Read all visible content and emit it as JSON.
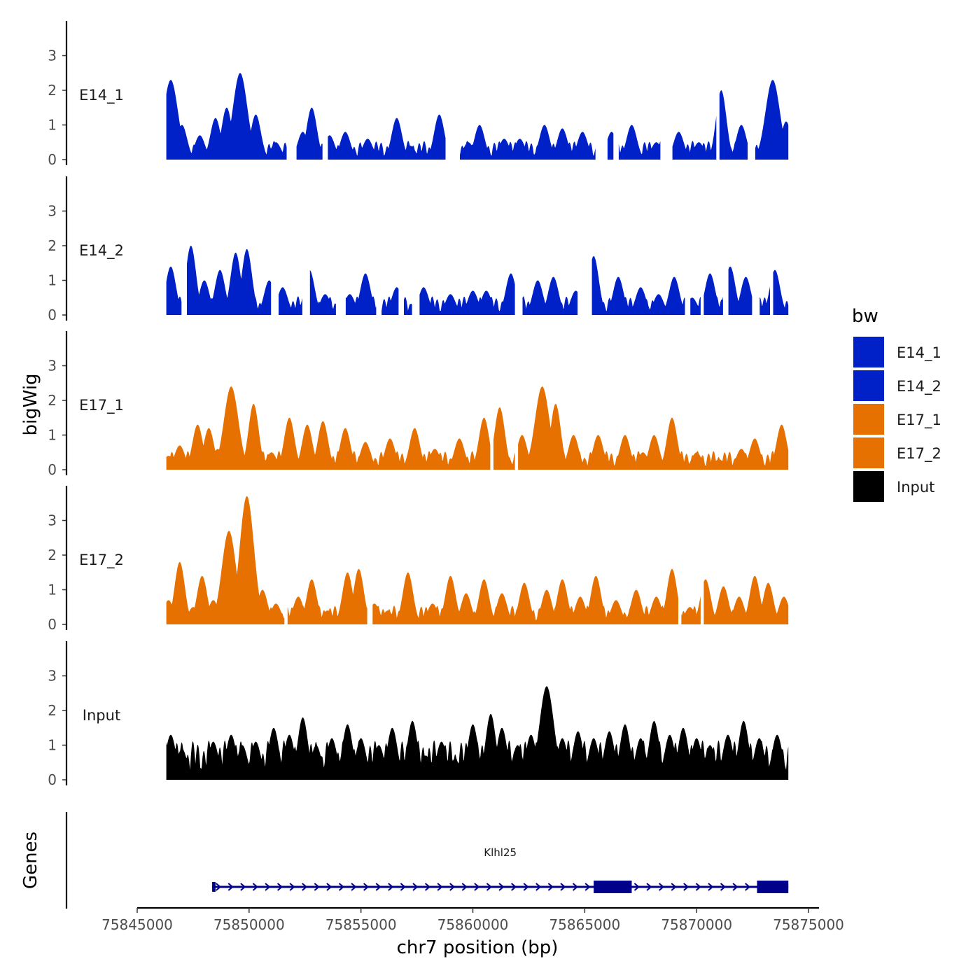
{
  "chart_data": {
    "type": "area",
    "xlabel": "chr7 position (bp)",
    "ylabel": "bigWig",
    "genes_label": "Genes",
    "xlim": [
      75845000,
      75875500
    ],
    "x_ticks": [
      75845000,
      75850000,
      75855000,
      75860000,
      75865000,
      75870000,
      75875000
    ],
    "x_tick_labels": [
      "75845000",
      "75850000",
      "75855000",
      "75860000",
      "75865000",
      "75870000",
      "75875000"
    ],
    "ylim": [
      0,
      4
    ],
    "y_ticks": [
      0,
      1,
      2,
      3
    ],
    "y_tick_labels": [
      "0",
      "1",
      "2",
      "3"
    ],
    "legend": {
      "title": "bw",
      "entries": [
        {
          "label": "E14_1",
          "color": "#0020c8"
        },
        {
          "label": "E14_2",
          "color": "#0020c8"
        },
        {
          "label": "E17_1",
          "color": "#e67100"
        },
        {
          "label": "E17_2",
          "color": "#e67100"
        },
        {
          "label": "Input",
          "color": "#000000"
        }
      ]
    },
    "series": [
      {
        "name": "E14_1",
        "color": "#0020c8",
        "peaks": [
          [
            75846500,
            2.3
          ],
          [
            75847000,
            1.0
          ],
          [
            75847800,
            0.7
          ],
          [
            75848500,
            1.2
          ],
          [
            75849000,
            1.5
          ],
          [
            75849600,
            2.5
          ],
          [
            75850300,
            1.3
          ],
          [
            75851200,
            0.5
          ],
          [
            75852400,
            0.8
          ],
          [
            75852800,
            1.5
          ],
          [
            75853600,
            0.7
          ],
          [
            75854300,
            0.8
          ],
          [
            75855300,
            0.6
          ],
          [
            75856600,
            1.2
          ],
          [
            75857200,
            0.4
          ],
          [
            75858500,
            1.3
          ],
          [
            75859800,
            0.5
          ],
          [
            75860300,
            1.0
          ],
          [
            75861400,
            0.6
          ],
          [
            75862100,
            0.6
          ],
          [
            75863200,
            1.0
          ],
          [
            75864000,
            0.9
          ],
          [
            75864900,
            0.8
          ],
          [
            75866200,
            0.8
          ],
          [
            75867100,
            1.0
          ],
          [
            75868200,
            0.5
          ],
          [
            75869200,
            0.8
          ],
          [
            75870100,
            0.5
          ],
          [
            75871100,
            2.0
          ],
          [
            75872000,
            1.0
          ],
          [
            75873400,
            2.3
          ],
          [
            75874000,
            1.1
          ]
        ],
        "gaps": [
          [
            75851700,
            75852100
          ],
          [
            75853300,
            75853500
          ],
          [
            75858800,
            75859400
          ],
          [
            75865500,
            75866000
          ],
          [
            75866300,
            75866500
          ],
          [
            75868400,
            75868900
          ],
          [
            75870900,
            75871000
          ],
          [
            75872300,
            75872600
          ]
        ]
      },
      {
        "name": "E14_2",
        "color": "#0020c8",
        "peaks": [
          [
            75846500,
            1.4
          ],
          [
            75847400,
            2.0
          ],
          [
            75848000,
            1.0
          ],
          [
            75848700,
            1.3
          ],
          [
            75849400,
            1.8
          ],
          [
            75849900,
            1.9
          ],
          [
            75850900,
            1.0
          ],
          [
            75851500,
            0.8
          ],
          [
            75852700,
            1.3
          ],
          [
            75853400,
            0.6
          ],
          [
            75854500,
            0.6
          ],
          [
            75855200,
            1.2
          ],
          [
            75856600,
            0.8
          ],
          [
            75857800,
            0.8
          ],
          [
            75859000,
            0.6
          ],
          [
            75860000,
            0.7
          ],
          [
            75860600,
            0.7
          ],
          [
            75861700,
            1.2
          ],
          [
            75862900,
            1.0
          ],
          [
            75863600,
            1.1
          ],
          [
            75864600,
            0.7
          ],
          [
            75865400,
            1.7
          ],
          [
            75866500,
            1.1
          ],
          [
            75867500,
            0.8
          ],
          [
            75868300,
            0.6
          ],
          [
            75869000,
            1.1
          ],
          [
            75869800,
            0.5
          ],
          [
            75870600,
            1.2
          ],
          [
            75871500,
            1.4
          ],
          [
            75872200,
            1.1
          ],
          [
            75873500,
            1.3
          ]
        ],
        "gaps": [
          [
            75847000,
            75847200
          ],
          [
            75851000,
            75851300
          ],
          [
            75852400,
            75852700
          ],
          [
            75853900,
            75854300
          ],
          [
            75855700,
            75855900
          ],
          [
            75856700,
            75856900
          ],
          [
            75857300,
            75857600
          ],
          [
            75861900,
            75862200
          ],
          [
            75864700,
            75865300
          ],
          [
            75869500,
            75869700
          ],
          [
            75870200,
            75870300
          ],
          [
            75871200,
            75871400
          ],
          [
            75872500,
            75872800
          ],
          [
            75873300,
            75873400
          ]
        ]
      },
      {
        "name": "E17_1",
        "color": "#e67100",
        "peaks": [
          [
            75846400,
            0.4
          ],
          [
            75846900,
            0.7
          ],
          [
            75847700,
            1.3
          ],
          [
            75848200,
            1.2
          ],
          [
            75848600,
            0.6
          ],
          [
            75849200,
            2.4
          ],
          [
            75850200,
            1.9
          ],
          [
            75851000,
            0.5
          ],
          [
            75851800,
            1.5
          ],
          [
            75852600,
            1.3
          ],
          [
            75853300,
            1.4
          ],
          [
            75854300,
            1.2
          ],
          [
            75855200,
            0.8
          ],
          [
            75856300,
            0.9
          ],
          [
            75857400,
            1.2
          ],
          [
            75858300,
            0.6
          ],
          [
            75859400,
            0.9
          ],
          [
            75860500,
            1.5
          ],
          [
            75861200,
            1.8
          ],
          [
            75862200,
            1.0
          ],
          [
            75863100,
            2.4
          ],
          [
            75863700,
            1.9
          ],
          [
            75864500,
            1.0
          ],
          [
            75865600,
            1.0
          ],
          [
            75866800,
            1.0
          ],
          [
            75867600,
            0.5
          ],
          [
            75868100,
            1.0
          ],
          [
            75868900,
            1.5
          ],
          [
            75870000,
            0.5
          ],
          [
            75871000,
            0.3
          ],
          [
            75872000,
            0.6
          ],
          [
            75872600,
            0.9
          ],
          [
            75873800,
            1.3
          ]
        ],
        "gaps": [
          [
            75860800,
            75860900
          ],
          [
            75861900,
            75862000
          ]
        ]
      },
      {
        "name": "E17_2",
        "color": "#e67100",
        "peaks": [
          [
            75846400,
            0.7
          ],
          [
            75846900,
            1.8
          ],
          [
            75847500,
            0.5
          ],
          [
            75847900,
            1.4
          ],
          [
            75848400,
            0.7
          ],
          [
            75849100,
            2.7
          ],
          [
            75849900,
            3.7
          ],
          [
            75850600,
            1.0
          ],
          [
            75851200,
            0.6
          ],
          [
            75852200,
            0.8
          ],
          [
            75852800,
            1.3
          ],
          [
            75853500,
            0.4
          ],
          [
            75854400,
            1.5
          ],
          [
            75854900,
            1.6
          ],
          [
            75855600,
            0.6
          ],
          [
            75856200,
            0.4
          ],
          [
            75857100,
            1.5
          ],
          [
            75858200,
            0.6
          ],
          [
            75859000,
            1.4
          ],
          [
            75859700,
            0.9
          ],
          [
            75860500,
            1.3
          ],
          [
            75861300,
            0.9
          ],
          [
            75862300,
            1.2
          ],
          [
            75863300,
            1.0
          ],
          [
            75864000,
            1.3
          ],
          [
            75864800,
            0.8
          ],
          [
            75865500,
            1.4
          ],
          [
            75866400,
            0.7
          ],
          [
            75867300,
            1.0
          ],
          [
            75868200,
            0.8
          ],
          [
            75868900,
            1.6
          ],
          [
            75869700,
            0.5
          ],
          [
            75870400,
            1.3
          ],
          [
            75871200,
            1.1
          ],
          [
            75871900,
            0.8
          ],
          [
            75872600,
            1.4
          ],
          [
            75873200,
            1.2
          ],
          [
            75873900,
            0.8
          ]
        ],
        "gaps": [
          [
            75851600,
            75851700
          ],
          [
            75855300,
            75855500
          ],
          [
            75869200,
            75869300
          ],
          [
            75870200,
            75870300
          ]
        ]
      },
      {
        "name": "Input",
        "color": "#000000",
        "peaks": [
          [
            75846500,
            1.3
          ],
          [
            75847000,
            0.9
          ],
          [
            75847700,
            0.4
          ],
          [
            75848400,
            1.1
          ],
          [
            75849200,
            1.3
          ],
          [
            75849700,
            1.0
          ],
          [
            75850300,
            1.1
          ],
          [
            75851100,
            1.5
          ],
          [
            75851800,
            1.3
          ],
          [
            75852400,
            1.8
          ],
          [
            75853000,
            1.0
          ],
          [
            75853700,
            1.2
          ],
          [
            75854400,
            1.6
          ],
          [
            75855000,
            1.2
          ],
          [
            75855800,
            1.0
          ],
          [
            75856400,
            1.5
          ],
          [
            75857300,
            1.7
          ],
          [
            75857900,
            0.7
          ],
          [
            75858600,
            1.1
          ],
          [
            75859200,
            0.6
          ],
          [
            75860000,
            1.6
          ],
          [
            75860800,
            1.9
          ],
          [
            75861300,
            1.5
          ],
          [
            75862000,
            1.0
          ],
          [
            75862600,
            1.3
          ],
          [
            75863300,
            2.7
          ],
          [
            75864000,
            1.2
          ],
          [
            75864700,
            1.4
          ],
          [
            75865400,
            1.2
          ],
          [
            75866100,
            1.4
          ],
          [
            75866800,
            1.6
          ],
          [
            75867500,
            1.2
          ],
          [
            75868100,
            1.7
          ],
          [
            75868800,
            1.3
          ],
          [
            75869400,
            1.5
          ],
          [
            75870000,
            1.2
          ],
          [
            75870600,
            1.0
          ],
          [
            75871400,
            1.3
          ],
          [
            75872100,
            1.7
          ],
          [
            75872800,
            1.2
          ],
          [
            75873600,
            1.3
          ]
        ],
        "gaps": []
      }
    ],
    "gene": {
      "name": "Klhl25",
      "start": 75848350,
      "end": 75874100,
      "strand": "+",
      "exons": [
        [
          75848350,
          75848500
        ],
        [
          75865400,
          75867100
        ],
        [
          75872700,
          75874100
        ]
      ],
      "color": "#00008b"
    }
  }
}
